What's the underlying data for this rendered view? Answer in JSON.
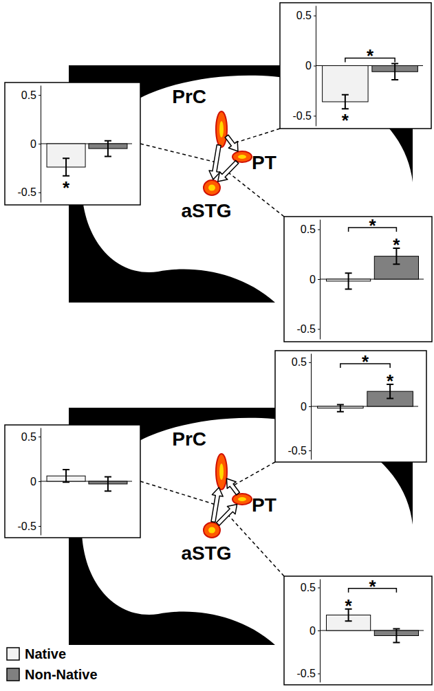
{
  "chart_data": [
    {
      "type": "bar",
      "categories": [
        null,
        null
      ],
      "values": [
        -0.24,
        -0.05
      ],
      "errors": [
        0.09,
        0.08
      ],
      "colors": [
        "#f2f2f2",
        "#808080"
      ],
      "ylim": [
        -0.6,
        0.6
      ],
      "yticks": [
        -0.5,
        0,
        0.5
      ],
      "tick_labels": "y",
      "connection": {
        "from": "PrC",
        "to": "aSTG"
      },
      "annotations": [
        {
          "text": "*",
          "bar": 0
        }
      ]
    },
    {
      "type": "bar",
      "categories": [
        null,
        null
      ],
      "values": [
        -0.36,
        -0.06
      ],
      "errors": [
        0.07,
        0.08
      ],
      "colors": [
        "#f2f2f2",
        "#808080"
      ],
      "ylim": [
        -0.6,
        0.6
      ],
      "yticks": [
        -0.5,
        0,
        0.5
      ],
      "tick_labels": "y",
      "connection": {
        "from": "PrC",
        "to": "PT"
      },
      "annotations": [
        {
          "text": "*",
          "bar": 0
        },
        {
          "text": "*",
          "bars": [
            0,
            1
          ]
        }
      ]
    },
    {
      "type": "bar",
      "categories": [
        null,
        null
      ],
      "values": [
        -0.02,
        0.23
      ],
      "errors": [
        0.08,
        0.08
      ],
      "colors": [
        "#f2f2f2",
        "#808080"
      ],
      "ylim": [
        -0.6,
        0.6
      ],
      "yticks": [
        -0.5,
        0,
        0.5
      ],
      "tick_labels": "y",
      "connection": {
        "from": "PT",
        "to": "aSTG"
      },
      "annotations": [
        {
          "text": "*",
          "bar": 1
        },
        {
          "text": "*",
          "bars": [
            0,
            1
          ]
        }
      ]
    },
    {
      "type": "bar",
      "categories": [
        null,
        null
      ],
      "values": [
        0.06,
        -0.03
      ],
      "errors": [
        0.07,
        0.08
      ],
      "colors": [
        "#f2f2f2",
        "#808080"
      ],
      "ylim": [
        -0.6,
        0.6
      ],
      "yticks": [
        -0.5,
        0,
        0.5
      ],
      "tick_labels": "y",
      "connection": {
        "from": "aSTG",
        "to": "PrC"
      }
    },
    {
      "type": "bar",
      "categories": [
        null,
        null
      ],
      "values": [
        -0.02,
        0.17
      ],
      "errors": [
        0.04,
        0.08
      ],
      "colors": [
        "#f2f2f2",
        "#808080"
      ],
      "ylim": [
        -0.6,
        0.6
      ],
      "yticks": [
        -0.5,
        0,
        0.5
      ],
      "tick_labels": "y",
      "connection": {
        "from": "PT",
        "to": "PrC"
      },
      "annotations": [
        {
          "text": "*",
          "bar": 1
        },
        {
          "text": "*",
          "bars": [
            0,
            1
          ]
        }
      ]
    },
    {
      "type": "bar",
      "categories": [
        null,
        null
      ],
      "values": [
        0.18,
        -0.06
      ],
      "errors": [
        0.07,
        0.08
      ],
      "colors": [
        "#f2f2f2",
        "#808080"
      ],
      "ylim": [
        -0.6,
        0.6
      ],
      "yticks": [
        -0.5,
        0,
        0.5
      ],
      "tick_labels": "y",
      "connection": {
        "from": "aSTG",
        "to": "PT"
      },
      "annotations": [
        {
          "text": "*",
          "bar": 0
        },
        {
          "text": "*",
          "bars": [
            0,
            1
          ]
        }
      ]
    }
  ],
  "panels": [
    {
      "regions": [
        "PrC",
        "PT",
        "aSTG"
      ]
    },
    {
      "regions": [
        "PrC",
        "PT",
        "aSTG"
      ]
    }
  ],
  "legend_entries": [
    {
      "label": "Native",
      "color": "#f2f2f2"
    },
    {
      "label": "Non-Native",
      "color": "#808080"
    }
  ]
}
